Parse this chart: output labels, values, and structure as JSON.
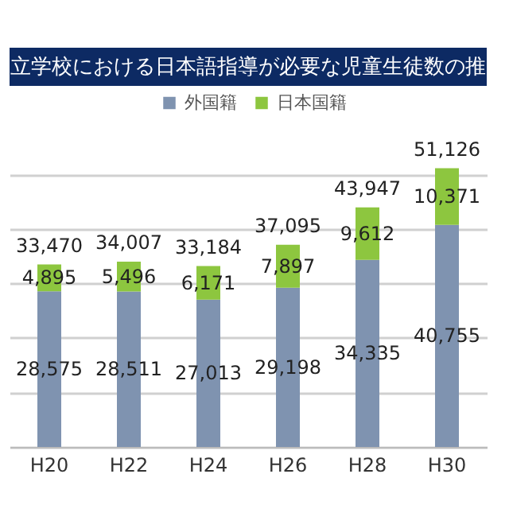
{
  "chart_data": {
    "type": "bar",
    "title": "立学校における日本語指導が必要な児童生徒数の推",
    "categories": [
      "H20",
      "H22",
      "H24",
      "H26",
      "H28",
      "H30"
    ],
    "series": [
      {
        "name": "外国籍",
        "color": "#7f93b0",
        "values": [
          28575,
          28511,
          27013,
          29198,
          34335,
          40755
        ],
        "value_labels": [
          "28,575",
          "28,511",
          "27,013",
          "29,198",
          "34,335",
          "40,755"
        ]
      },
      {
        "name": "日本国籍",
        "color": "#8dc63f",
        "values": [
          4895,
          5496,
          6171,
          7897,
          9612,
          10371
        ],
        "value_labels": [
          "4,895",
          "5,496",
          "6,171",
          "7,897",
          "9,612",
          "10,371"
        ]
      }
    ],
    "stacked": true,
    "totals": [
      "33,470",
      "34,007",
      "33,184",
      "37,095",
      "43,947",
      "51,126"
    ],
    "tick_labels": "x",
    "grid": "y",
    "legend": "top"
  }
}
